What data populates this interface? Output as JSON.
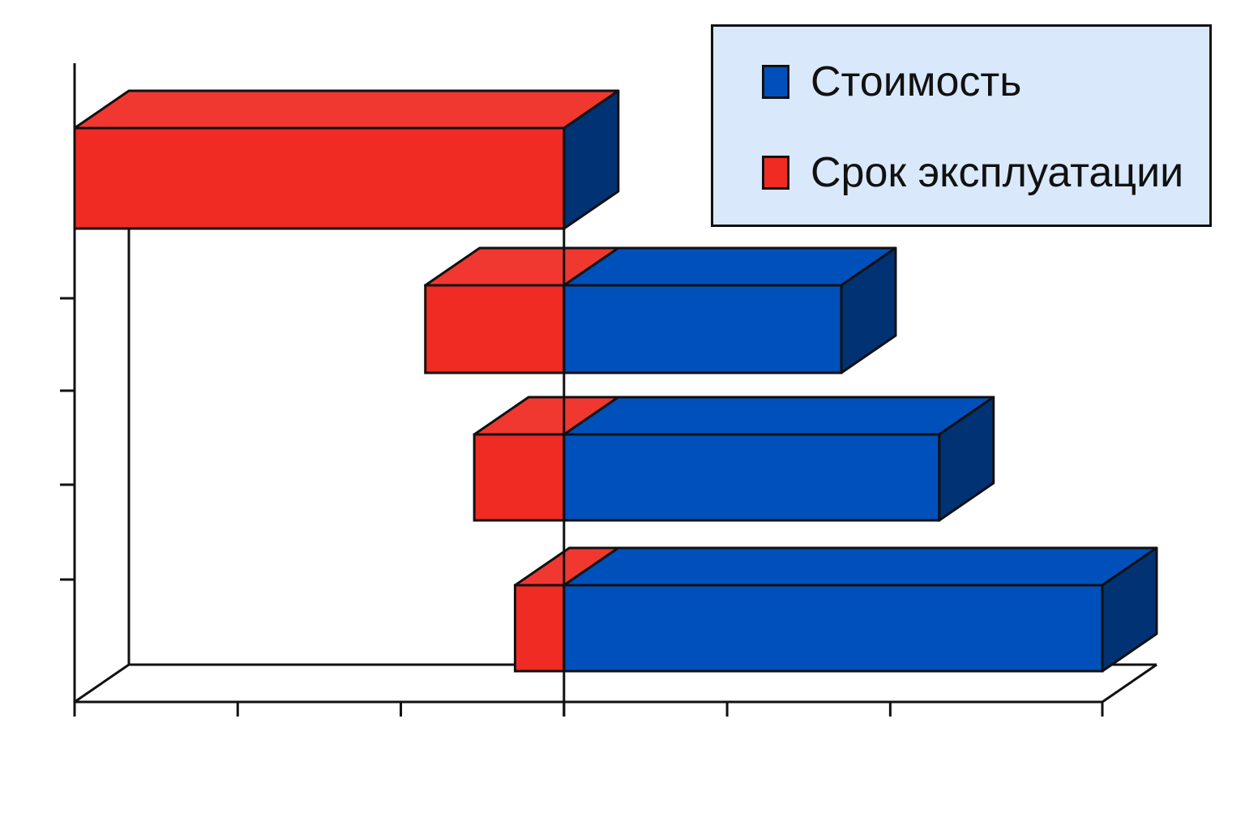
{
  "chart_data": {
    "type": "bar",
    "orientation": "horizontal",
    "style": "3d-stacked-diverging",
    "categories": [
      "",
      "",
      "",
      ""
    ],
    "series": [
      {
        "name": "Стоимость",
        "color": "#0050bb",
        "values": [
          0,
          1.7,
          2.3,
          3.3
        ]
      },
      {
        "name": "Срок эксплуатации",
        "color": "#ef2b24",
        "values": [
          -3.0,
          -0.85,
          -0.55,
          -0.3
        ]
      }
    ],
    "xlim": [
      -3,
      3.3
    ],
    "x_ticks": [
      -3,
      -2,
      -1,
      0,
      1,
      2,
      3.3
    ],
    "grid": false,
    "legend_position": "top-right",
    "title": "",
    "xlabel": "",
    "ylabel": ""
  },
  "legend": {
    "items": [
      {
        "label": "Стоимость",
        "color": "#0050bb"
      },
      {
        "label": "Срок эксплуатации",
        "color": "#ef2b24"
      }
    ]
  }
}
